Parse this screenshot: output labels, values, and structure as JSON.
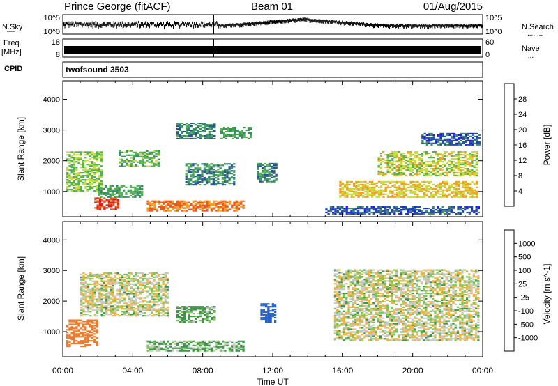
{
  "header": {
    "title": "Prince George (fitACF)",
    "beam": "Beam 01",
    "date": "01/Aug/2015"
  },
  "noise_panel": {
    "left_label": "N.Sky",
    "left_ticks": [
      "10^5",
      "10^0"
    ],
    "right_ticks": [
      "10^5",
      "10^0"
    ],
    "right_label": "N.Search",
    "right_label_dots": "........"
  },
  "freq_panel": {
    "left_label_top": "Freq.",
    "left_label_bottom": "[MHz]",
    "left_ticks": [
      "18",
      "8"
    ],
    "right_ticks": [
      "60",
      "0"
    ],
    "right_label": "Nave",
    "right_label_dots": "...."
  },
  "cpid": {
    "label": "CPID",
    "value": "twofsound 3503"
  },
  "x_axis": {
    "label": "Time UT",
    "ticks": [
      "00:00",
      "04:00",
      "08:00",
      "12:00",
      "16:00",
      "20:00",
      "00:00"
    ]
  },
  "colors": {
    "power_scale": [
      "#1e1ef0",
      "#2850a0",
      "#3c8c64",
      "#50b450",
      "#c8dc3c",
      "#f0a028",
      "#e65a1e",
      "#dc1e1e"
    ],
    "velocity_scale": [
      "#1e1ef0",
      "#2864c8",
      "#3c9646",
      "#78c850",
      "#c8c8c8",
      "#f0b43c",
      "#f07828",
      "#dc1e1e"
    ]
  },
  "chart_data": [
    {
      "type": "heatmap",
      "ylabel": "Slant Range [km]",
      "xlabel": "",
      "x_range_hours": [
        0,
        24
      ],
      "ylim": [
        180,
        4600
      ],
      "y_ticks": [
        "1000",
        "2000",
        "3000",
        "4000"
      ],
      "colorbar_label": "Power [dB]",
      "colorbar_ticks": [
        "4",
        "8",
        "12",
        "16",
        "20",
        "24",
        "28"
      ],
      "colorbar_range": [
        0,
        32
      ],
      "echo_regions": [
        {
          "t0": 0.2,
          "t1": 2.2,
          "r0": 1000,
          "r1": 2300,
          "level": 16
        },
        {
          "t0": 2.0,
          "t1": 4.5,
          "r0": 800,
          "r1": 1200,
          "level": 12
        },
        {
          "t0": 1.8,
          "t1": 3.2,
          "r0": 400,
          "r1": 800,
          "level": 28
        },
        {
          "t0": 4.8,
          "t1": 10.3,
          "r0": 350,
          "r1": 700,
          "level": 24
        },
        {
          "t0": 3.2,
          "t1": 5.5,
          "r0": 1800,
          "r1": 2300,
          "level": 14
        },
        {
          "t0": 6.5,
          "t1": 8.6,
          "r0": 2700,
          "r1": 3200,
          "level": 10
        },
        {
          "t0": 9.0,
          "t1": 10.8,
          "r0": 2700,
          "r1": 3100,
          "level": 12
        },
        {
          "t0": 7.0,
          "t1": 9.8,
          "r0": 1200,
          "r1": 1900,
          "level": 10
        },
        {
          "t0": 11.1,
          "t1": 12.2,
          "r0": 1300,
          "r1": 1900,
          "level": 10
        },
        {
          "t0": 15.8,
          "t1": 23.6,
          "r0": 800,
          "r1": 1300,
          "level": 20
        },
        {
          "t0": 18.0,
          "t1": 23.6,
          "r0": 1500,
          "r1": 2300,
          "level": 18
        },
        {
          "t0": 15.0,
          "t1": 23.8,
          "r0": 250,
          "r1": 500,
          "level": 6
        },
        {
          "t0": 20.5,
          "t1": 23.8,
          "r0": 2500,
          "r1": 2900,
          "level": 6
        }
      ]
    },
    {
      "type": "heatmap",
      "ylabel": "Slant Range [km]",
      "xlabel": "Time UT",
      "x_range_hours": [
        0,
        24
      ],
      "ylim": [
        180,
        4600
      ],
      "y_ticks": [
        "1000",
        "2000",
        "3000",
        "4000"
      ],
      "colorbar_label": "Velocity [m s^-1]",
      "colorbar_ticks": [
        "1000",
        "500",
        "100",
        "25",
        "-25",
        "-100",
        "-500",
        "-1000"
      ],
      "echo_regions": [
        {
          "t0": 0.2,
          "t1": 2.0,
          "r0": 500,
          "r1": 1400,
          "velocity": -300
        },
        {
          "t0": 4.8,
          "t1": 10.3,
          "r0": 350,
          "r1": 700,
          "velocity": 60
        },
        {
          "t0": 6.5,
          "t1": 8.6,
          "r0": 1300,
          "r1": 1800,
          "velocity": 80
        },
        {
          "t0": 11.3,
          "t1": 12.2,
          "r0": 1300,
          "r1": 1900,
          "velocity": 600
        },
        {
          "t0": 1.0,
          "t1": 6.0,
          "r0": 1500,
          "r1": 2900,
          "velocity": 0
        },
        {
          "t0": 15.5,
          "t1": 23.8,
          "r0": 700,
          "r1": 3000,
          "velocity": 0
        }
      ]
    }
  ]
}
